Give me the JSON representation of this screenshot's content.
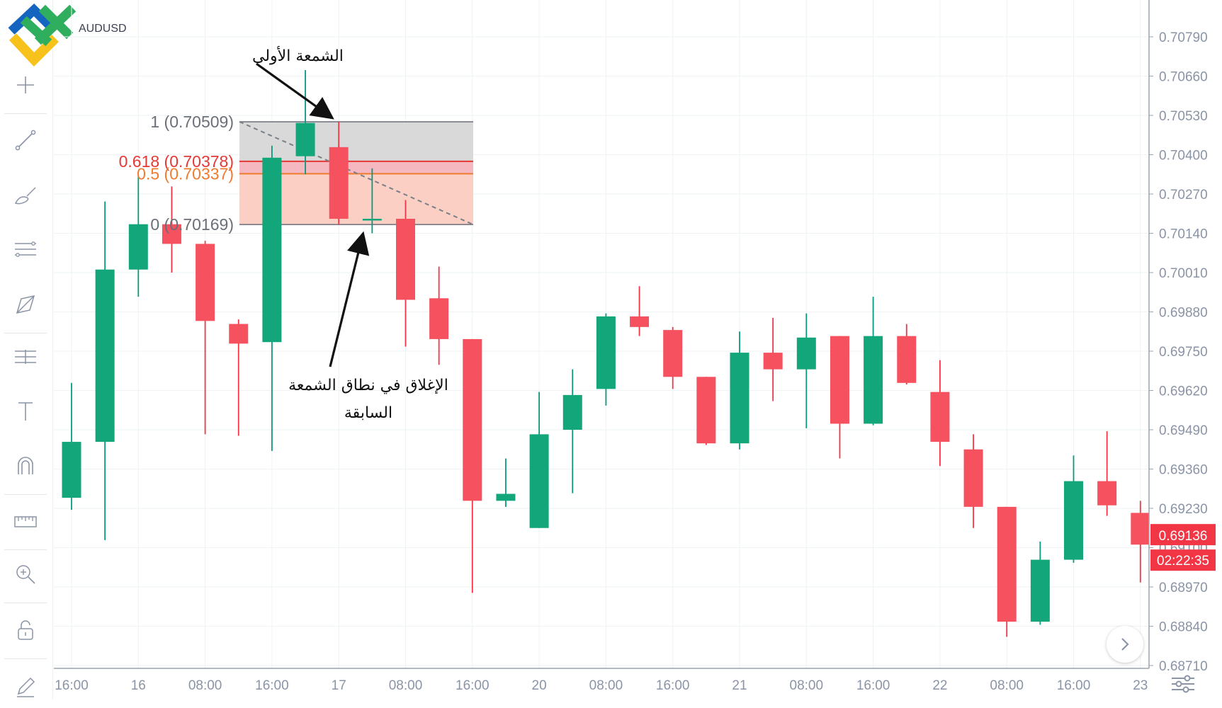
{
  "symbol": "AUDUSD",
  "colors": {
    "up": "#089981",
    "up_fill": "#12a67a",
    "down": "#f23645",
    "down_fill": "#f5515e",
    "fib_618": "#e53935",
    "fib_05": "#ef7b2e",
    "fib_gray": "#555b66",
    "grid": "#eef3f6",
    "axis_text": "#8a94a6"
  },
  "toolbar": {
    "tools": [
      {
        "name": "crosshair-tool",
        "icon": "crosshair-icon"
      },
      {
        "name": "trend-line-tool",
        "icon": "trend-line-icon"
      },
      {
        "name": "brush-tool",
        "icon": "brush-icon"
      },
      {
        "name": "channels-tool",
        "icon": "channels-icon"
      },
      {
        "name": "patterns-tool",
        "icon": "pattern-icon"
      },
      {
        "name": "forecast-tool",
        "icon": "forecast-icon"
      },
      {
        "name": "text-tool",
        "icon": "text-icon"
      },
      {
        "name": "magnet-tool",
        "icon": "magnet-icon"
      },
      {
        "name": "measure-tool",
        "icon": "ruler-icon"
      },
      {
        "name": "zoom-tool",
        "icon": "zoom-icon"
      },
      {
        "name": "lock-tool",
        "icon": "lock-icon"
      },
      {
        "name": "edit-tool",
        "icon": "edit-icon"
      }
    ]
  },
  "chart_data": {
    "type": "candlestick",
    "symbol": "AUDUSD",
    "y_ticks": [
      "0.70790",
      "0.70660",
      "0.70530",
      "0.70400",
      "0.70270",
      "0.70140",
      "0.70010",
      "0.69880",
      "0.69750",
      "0.69620",
      "0.69490",
      "0.69360",
      "0.69230",
      "0.69100",
      "0.68970",
      "0.68840",
      "0.68710"
    ],
    "x_ticks": [
      {
        "label": "16:00",
        "slot": 0
      },
      {
        "label": "16",
        "slot": 2
      },
      {
        "label": "08:00",
        "slot": 4
      },
      {
        "label": "16:00",
        "slot": 6
      },
      {
        "label": "17",
        "slot": 8
      },
      {
        "label": "08:00",
        "slot": 10
      },
      {
        "label": "16:00",
        "slot": 12
      },
      {
        "label": "20",
        "slot": 14
      },
      {
        "label": "08:00",
        "slot": 16
      },
      {
        "label": "16:00",
        "slot": 18
      },
      {
        "label": "21",
        "slot": 20
      },
      {
        "label": "08:00",
        "slot": 22
      },
      {
        "label": "16:00",
        "slot": 24
      },
      {
        "label": "22",
        "slot": 26
      },
      {
        "label": "08:00",
        "slot": 28
      },
      {
        "label": "16:00",
        "slot": 30
      },
      {
        "label": "23",
        "slot": 32
      }
    ],
    "candles": [
      {
        "o": 0.69265,
        "h": 0.69645,
        "l": 0.69225,
        "c": 0.6945
      },
      {
        "o": 0.6945,
        "h": 0.70245,
        "l": 0.69125,
        "c": 0.7002
      },
      {
        "o": 0.7002,
        "h": 0.7033,
        "l": 0.6993,
        "c": 0.7017
      },
      {
        "o": 0.7017,
        "h": 0.70295,
        "l": 0.7001,
        "c": 0.70105
      },
      {
        "o": 0.70105,
        "h": 0.70115,
        "l": 0.69475,
        "c": 0.6985
      },
      {
        "o": 0.6984,
        "h": 0.69855,
        "l": 0.6947,
        "c": 0.69775
      },
      {
        "o": 0.6978,
        "h": 0.7043,
        "l": 0.6942,
        "c": 0.7039
      },
      {
        "o": 0.70395,
        "h": 0.7068,
        "l": 0.70335,
        "c": 0.70505
      },
      {
        "o": 0.70425,
        "h": 0.70509,
        "l": 0.70169,
        "c": 0.70188
      },
      {
        "o": 0.70188,
        "h": 0.70355,
        "l": 0.7014,
        "c": 0.70188
      },
      {
        "o": 0.70188,
        "h": 0.7025,
        "l": 0.69765,
        "c": 0.6992
      },
      {
        "o": 0.69925,
        "h": 0.7003,
        "l": 0.69705,
        "c": 0.6979
      },
      {
        "o": 0.6979,
        "h": 0.6979,
        "l": 0.6895,
        "c": 0.69255
      },
      {
        "o": 0.69255,
        "h": 0.69395,
        "l": 0.69235,
        "c": 0.69278
      },
      {
        "o": 0.69165,
        "h": 0.69615,
        "l": 0.69165,
        "c": 0.69475
      },
      {
        "o": 0.6949,
        "h": 0.6969,
        "l": 0.6928,
        "c": 0.69605
      },
      {
        "o": 0.69625,
        "h": 0.69875,
        "l": 0.6957,
        "c": 0.69865
      },
      {
        "o": 0.69865,
        "h": 0.69965,
        "l": 0.698,
        "c": 0.6983
      },
      {
        "o": 0.6982,
        "h": 0.6983,
        "l": 0.69625,
        "c": 0.69665
      },
      {
        "o": 0.69665,
        "h": 0.69665,
        "l": 0.6944,
        "c": 0.69445
      },
      {
        "o": 0.69445,
        "h": 0.69815,
        "l": 0.69425,
        "c": 0.69745
      },
      {
        "o": 0.69745,
        "h": 0.6986,
        "l": 0.69585,
        "c": 0.6969
      },
      {
        "o": 0.6969,
        "h": 0.69875,
        "l": 0.69495,
        "c": 0.69795
      },
      {
        "o": 0.698,
        "h": 0.698,
        "l": 0.69395,
        "c": 0.6951
      },
      {
        "o": 0.6951,
        "h": 0.6993,
        "l": 0.69505,
        "c": 0.698
      },
      {
        "o": 0.698,
        "h": 0.6984,
        "l": 0.6964,
        "c": 0.69645
      },
      {
        "o": 0.69615,
        "h": 0.6972,
        "l": 0.6937,
        "c": 0.6945
      },
      {
        "o": 0.69425,
        "h": 0.69475,
        "l": 0.69165,
        "c": 0.69235
      },
      {
        "o": 0.69235,
        "h": 0.69235,
        "l": 0.68805,
        "c": 0.68855
      },
      {
        "o": 0.68855,
        "h": 0.6912,
        "l": 0.68845,
        "c": 0.6906
      },
      {
        "o": 0.6906,
        "h": 0.69405,
        "l": 0.6905,
        "c": 0.6932
      },
      {
        "o": 0.6932,
        "h": 0.69485,
        "l": 0.69205,
        "c": 0.6924
      },
      {
        "o": 0.69215,
        "h": 0.69255,
        "l": 0.68985,
        "c": 0.6911
      }
    ],
    "fibonacci": {
      "levels": [
        {
          "ratio": "1",
          "price": "0.70509",
          "label": "1 (0.70509)",
          "role": "top"
        },
        {
          "ratio": "0.618",
          "price": "0.70378",
          "label": "0.618 (0.70378)",
          "role": "r618"
        },
        {
          "ratio": "0.5",
          "price": "0.70337",
          "label": "0.5 (0.70337)",
          "role": "r05"
        },
        {
          "ratio": "0",
          "price": "0.70169",
          "label": "0 (0.70169)",
          "role": "bottom"
        }
      ]
    },
    "current_price": "0.69136",
    "countdown": "02:22:35"
  },
  "annotations": {
    "first_candle": "الشمعة الأولى",
    "close_line1": "الإغلاق في نطاق الشمعة",
    "close_line2": "السابقة"
  }
}
